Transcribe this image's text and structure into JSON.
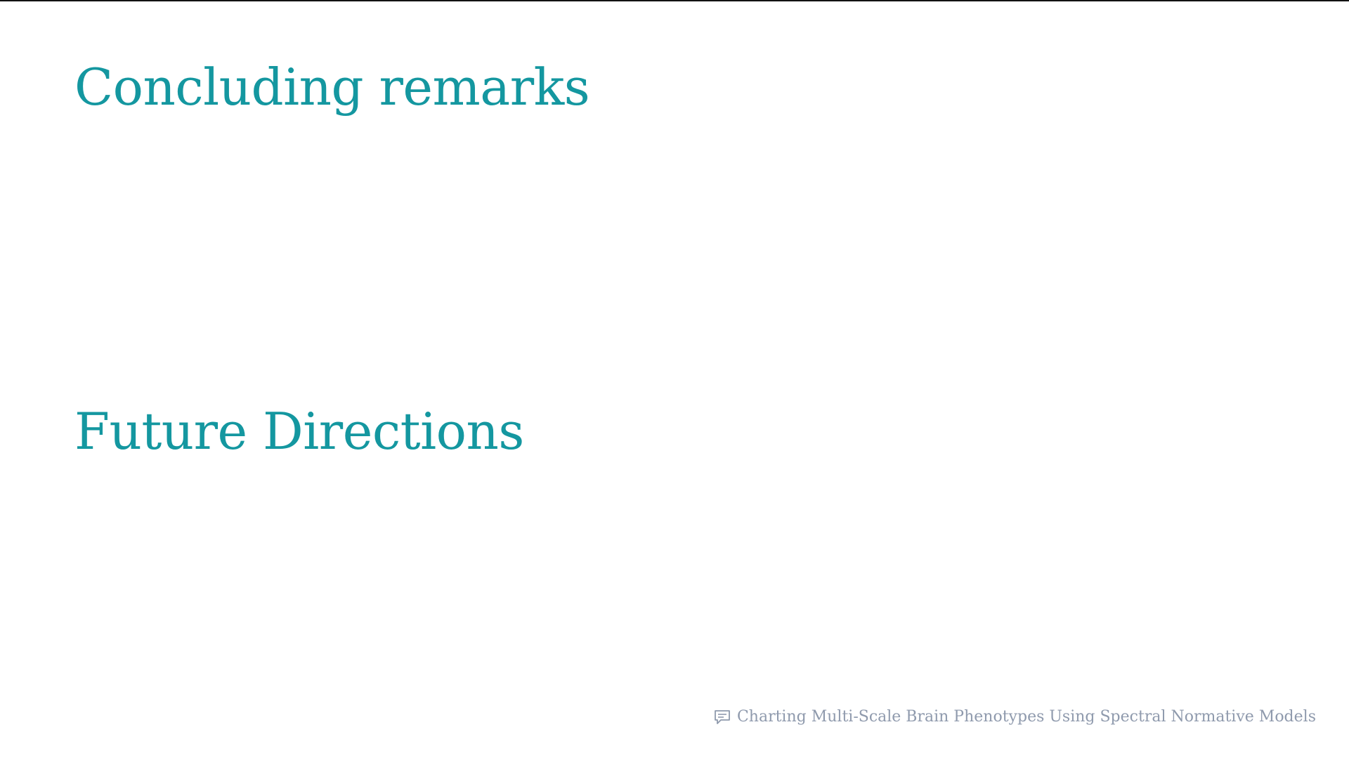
{
  "slide": {
    "headings": [
      "Concluding remarks",
      "Future Directions"
    ],
    "footer": {
      "icon": "speech-bubble-icon",
      "title": "Charting Multi-Scale Brain Phenotypes Using Spectral Normative Models"
    }
  },
  "colors": {
    "heading": "#1497a0",
    "footer": "#8f9aad",
    "top_border": "#111111"
  }
}
